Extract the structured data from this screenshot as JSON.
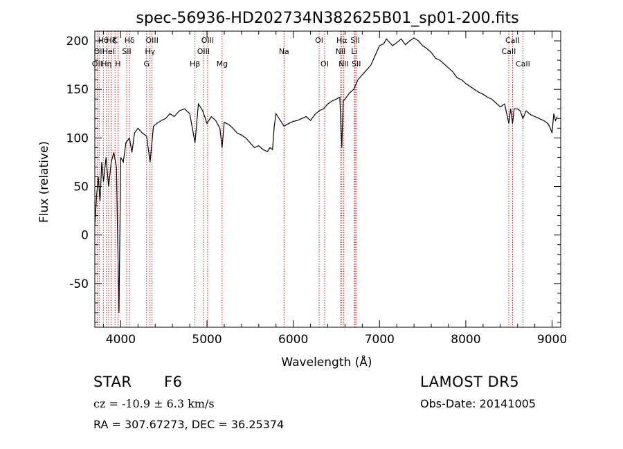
{
  "chart_data": {
    "type": "line",
    "title": "spec-56936-HD202734N382625B01_sp01-200.fits",
    "xlabel": "Wavelength (Å)",
    "ylabel": "Flux (relative)",
    "xlim": [
      3700,
      9100
    ],
    "ylim": [
      -95,
      210
    ],
    "xticks": [
      4000,
      5000,
      6000,
      7000,
      8000,
      9000
    ],
    "yticks": [
      -50,
      0,
      50,
      100,
      150,
      200
    ],
    "grid": false,
    "series": [
      {
        "color": "#000000",
        "x": [
          3700,
          3720,
          3740,
          3760,
          3780,
          3800,
          3830,
          3860,
          3890,
          3920,
          3950,
          3980,
          4000,
          4030,
          4060,
          4100,
          4130,
          4160,
          4200,
          4250,
          4300,
          4340,
          4380,
          4420,
          4470,
          4520,
          4570,
          4620,
          4680,
          4740,
          4800,
          4861,
          4900,
          4950,
          5000,
          5050,
          5100,
          5150,
          5175,
          5200,
          5250,
          5300,
          5350,
          5400,
          5450,
          5500,
          5550,
          5600,
          5650,
          5700,
          5730,
          5760,
          5780,
          5800,
          5850,
          5893,
          5950,
          6000,
          6050,
          6100,
          6150,
          6200,
          6250,
          6300,
          6350,
          6400,
          6450,
          6500,
          6540,
          6563,
          6580,
          6600,
          6650,
          6700,
          6750,
          6800,
          6850,
          6900,
          6950,
          7000,
          7050,
          7080,
          7100,
          7150,
          7200,
          7250,
          7300,
          7350,
          7400,
          7450,
          7500,
          7550,
          7600,
          7650,
          7700,
          7750,
          7800,
          7850,
          7900,
          7950,
          8000,
          8050,
          8100,
          8150,
          8200,
          8250,
          8300,
          8350,
          8400,
          8450,
          8498,
          8520,
          8542,
          8560,
          8600,
          8630,
          8662,
          8700,
          8750,
          8800,
          8850,
          8900,
          8950,
          8980,
          9000,
          9020,
          9040,
          9060
        ],
        "y": [
          10,
          40,
          60,
          35,
          75,
          55,
          80,
          50,
          75,
          85,
          70,
          -80,
          80,
          75,
          95,
          100,
          85,
          105,
          110,
          105,
          102,
          75,
          112,
          115,
          118,
          120,
          125,
          122,
          128,
          130,
          125,
          95,
          135,
          128,
          115,
          122,
          118,
          110,
          90,
          116,
          114,
          110,
          105,
          103,
          100,
          95,
          90,
          92,
          88,
          86,
          90,
          88,
          112,
          125,
          118,
          112,
          115,
          117,
          118,
          120,
          122,
          118,
          124,
          128,
          130,
          135,
          138,
          140,
          142,
          90,
          138,
          140,
          146,
          150,
          160,
          165,
          170,
          175,
          185,
          195,
          197,
          202,
          200,
          195,
          198,
          202,
          196,
          200,
          203,
          200,
          195,
          192,
          188,
          182,
          180,
          176,
          172,
          168,
          162,
          160,
          156,
          153,
          150,
          147,
          145,
          142,
          140,
          136,
          132,
          135,
          115,
          130,
          115,
          130,
          130,
          128,
          120,
          128,
          124,
          122,
          120,
          118,
          115,
          110,
          105,
          125,
          118,
          122
        ]
      }
    ],
    "lines": [
      {
        "wavelength": 3727,
        "row": 3,
        "label": "OII"
      },
      {
        "wavelength": 3750,
        "row": 2,
        "label": "OII"
      },
      {
        "wavelength": 3798,
        "row": 1,
        "label": "Hθ"
      },
      {
        "wavelength": 3835,
        "row": 3,
        "label": "Hη"
      },
      {
        "wavelength": 3860,
        "row": 2,
        "label": "HeI"
      },
      {
        "wavelength": 3889,
        "row": 1,
        "label": "Hζ"
      },
      {
        "wavelength": 3934,
        "row": 1,
        "label": "K"
      },
      {
        "wavelength": 3968,
        "row": 3,
        "label": "H"
      },
      {
        "wavelength": 4069,
        "row": 2,
        "label": "SII"
      },
      {
        "wavelength": 4102,
        "row": 1,
        "label": "Hδ"
      },
      {
        "wavelength": 4300,
        "row": 3,
        "label": "G"
      },
      {
        "wavelength": 4340,
        "row": 2,
        "label": "Hγ"
      },
      {
        "wavelength": 4363,
        "row": 1,
        "label": "OIII"
      },
      {
        "wavelength": 4861,
        "row": 3,
        "label": "Hβ"
      },
      {
        "wavelength": 4959,
        "row": 2,
        "label": "OIII"
      },
      {
        "wavelength": 5007,
        "row": 1,
        "label": "OIII"
      },
      {
        "wavelength": 5175,
        "row": 3,
        "label": "Mg"
      },
      {
        "wavelength": 5893,
        "row": 2,
        "label": "Na"
      },
      {
        "wavelength": 6300,
        "row": 1,
        "label": "OI"
      },
      {
        "wavelength": 6364,
        "row": 3,
        "label": "OI"
      },
      {
        "wavelength": 6548,
        "row": 2,
        "label": "NII"
      },
      {
        "wavelength": 6563,
        "row": 1,
        "label": "Hα"
      },
      {
        "wavelength": 6584,
        "row": 3,
        "label": "NII"
      },
      {
        "wavelength": 6708,
        "row": 2,
        "label": "Li"
      },
      {
        "wavelength": 6717,
        "row": 1,
        "label": "SII"
      },
      {
        "wavelength": 6731,
        "row": 3,
        "label": "SII"
      },
      {
        "wavelength": 8498,
        "row": 2,
        "label": "CaII"
      },
      {
        "wavelength": 8542,
        "row": 1,
        "label": "CaII"
      },
      {
        "wavelength": 8662,
        "row": 3,
        "label": "CaII"
      }
    ],
    "line_color": "#cc0000"
  },
  "info": {
    "object_class": "STAR",
    "subclass": "F6",
    "survey": "LAMOST DR5",
    "cz": "cz = -10.9 ± 6.3 km/s",
    "obs_date": "Obs-Date: 20141005",
    "coords": "RA = 307.67273, DEC =  36.25374"
  }
}
